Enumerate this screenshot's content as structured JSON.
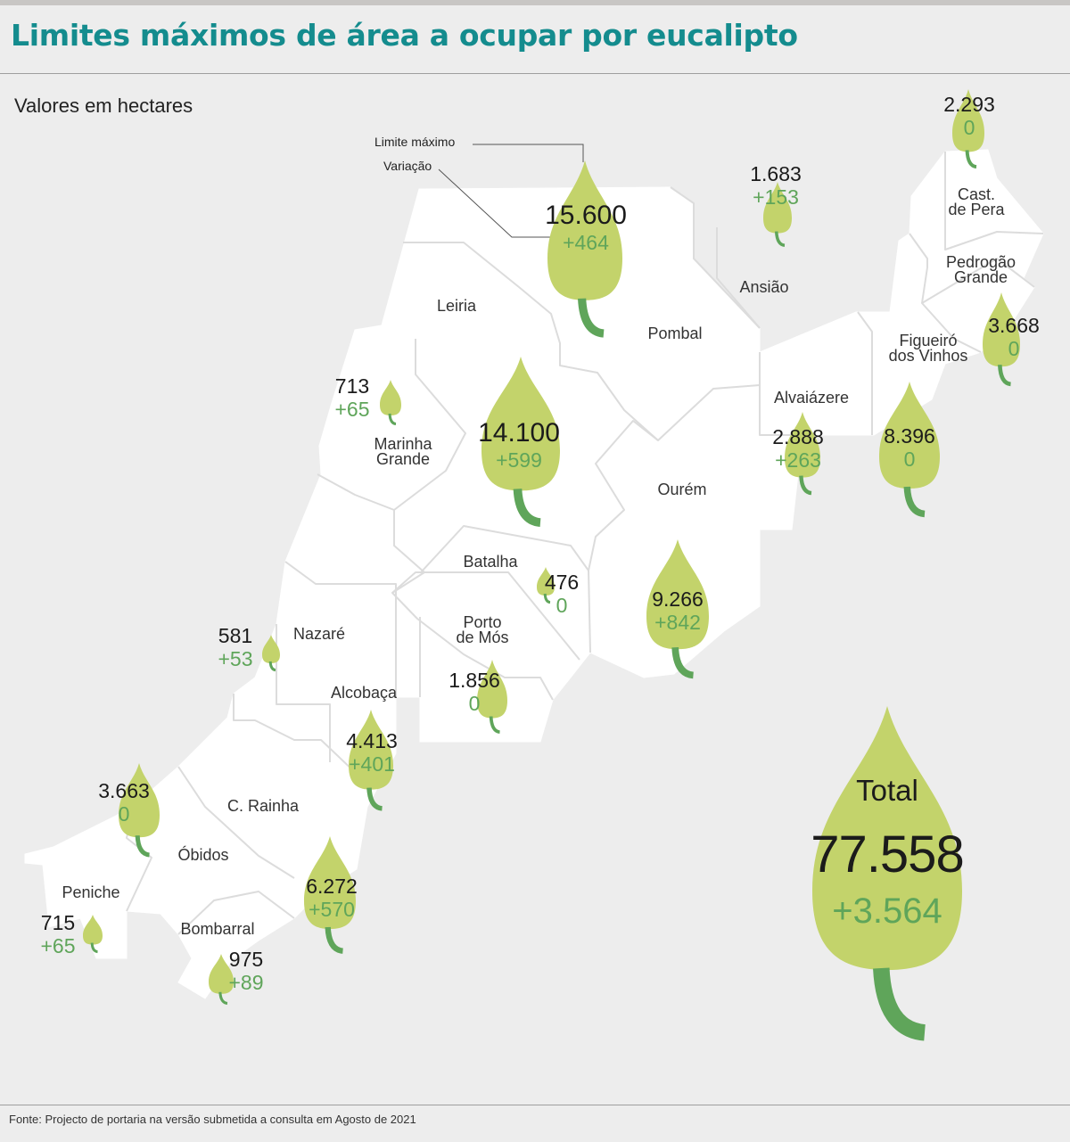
{
  "title": "Limites máximos de área a ocupar por eucalipto",
  "subtitle": "Valores em hectares",
  "source": "Fonte: Projecto de portaria na versão submetida a consulta em Agosto de 2021",
  "legend": {
    "max_label": "Limite máximo",
    "var_label": "Variação"
  },
  "colors": {
    "title": "#148c8e",
    "leaf": "#c3d36b",
    "stem": "#5fa55a",
    "variation": "#5fa55a",
    "land": "#ffffff",
    "sea": "#ededed"
  },
  "icon": "eucalyptus-leaf-icon",
  "municipalities": [
    {
      "name": "Leiria",
      "limit": "14.100",
      "variation": "+599"
    },
    {
      "name": "Pombal",
      "limit": "15.600",
      "variation": "+464"
    },
    {
      "name": "Ansião",
      "limit": "1.683",
      "variation": "+153"
    },
    {
      "name": "Cast.\nde Pera",
      "limit": "2.293",
      "variation": "0"
    },
    {
      "name": "Pedrogão\nGrande",
      "limit": "3.668",
      "variation": "0"
    },
    {
      "name": "Figueiró\ndos Vinhos",
      "limit": "8.396",
      "variation": "0"
    },
    {
      "name": "Alvaiázere",
      "limit": "2.888",
      "variation": "+263"
    },
    {
      "name": "Ourém",
      "limit": "9.266",
      "variation": "+842"
    },
    {
      "name": "Marinha\nGrande",
      "limit": "713",
      "variation": "+65"
    },
    {
      "name": "Batalha",
      "limit": "476",
      "variation": "0"
    },
    {
      "name": "Porto\nde Mós",
      "limit": "1.856",
      "variation": "0"
    },
    {
      "name": "Nazaré",
      "limit": "581",
      "variation": "+53"
    },
    {
      "name": "Alcobaça",
      "limit": "4.413",
      "variation": "+401"
    },
    {
      "name": "C. Rainha",
      "limit": "6.272",
      "variation": "+570"
    },
    {
      "name": "Óbidos",
      "limit": "3.663",
      "variation": "0"
    },
    {
      "name": "Peniche",
      "limit": "715",
      "variation": "+65"
    },
    {
      "name": "Bombarral",
      "limit": "975",
      "variation": "+89"
    }
  ],
  "total": {
    "label": "Total",
    "limit": "77.558",
    "variation": "+3.564"
  }
}
